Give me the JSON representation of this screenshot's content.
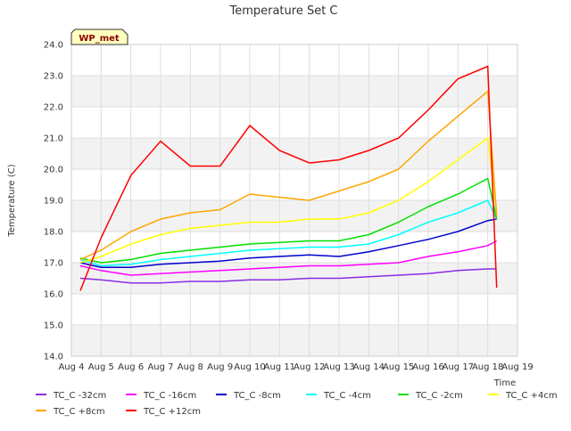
{
  "chart_data": {
    "type": "line",
    "title": "Temperature Set C",
    "xlabel": "Time",
    "ylabel": "Temperature (C)",
    "badge": "WP_met",
    "x_ticks": [
      "Aug 4",
      "Aug 5",
      "Aug 6",
      "Aug 7",
      "Aug 8",
      "Aug 9",
      "Aug 10",
      "Aug 11",
      "Aug 12",
      "Aug 13",
      "Aug 14",
      "Aug 15",
      "Aug 16",
      "Aug 17",
      "Aug 18",
      "Aug 19"
    ],
    "xlim": [
      4,
      19
    ],
    "ylim": [
      14.0,
      24.0
    ],
    "y_ticks": [
      "14.0",
      "15.0",
      "16.0",
      "17.0",
      "18.0",
      "19.0",
      "20.0",
      "21.0",
      "22.0",
      "23.0",
      "24.0"
    ],
    "grid": true,
    "legend_position": "bottom",
    "series": [
      {
        "name": "TC_C -32cm",
        "color": "#8a2be2",
        "x": [
          4.3,
          5.0,
          6.0,
          7.0,
          8.0,
          9.0,
          10.0,
          11.0,
          12.0,
          13.0,
          14.0,
          15.0,
          16.0,
          17.0,
          18.0,
          18.3
        ],
        "y": [
          16.5,
          16.45,
          16.35,
          16.35,
          16.4,
          16.4,
          16.45,
          16.45,
          16.5,
          16.5,
          16.55,
          16.6,
          16.65,
          16.75,
          16.8,
          16.8
        ]
      },
      {
        "name": "TC_C -16cm",
        "color": "#ff00ff",
        "x": [
          4.3,
          5.0,
          6.0,
          7.0,
          8.0,
          9.0,
          10.0,
          11.0,
          12.0,
          13.0,
          14.0,
          15.0,
          16.0,
          17.0,
          18.0,
          18.3
        ],
        "y": [
          16.9,
          16.75,
          16.6,
          16.65,
          16.7,
          16.75,
          16.8,
          16.85,
          16.9,
          16.9,
          16.95,
          17.0,
          17.2,
          17.35,
          17.55,
          17.7
        ]
      },
      {
        "name": "TC_C -8cm",
        "color": "#0000cd",
        "x": [
          4.3,
          5.0,
          6.0,
          7.0,
          8.0,
          9.0,
          10.0,
          11.0,
          12.0,
          13.0,
          14.0,
          15.0,
          16.0,
          17.0,
          18.0,
          18.3
        ],
        "y": [
          17.0,
          16.85,
          16.85,
          16.95,
          17.0,
          17.05,
          17.15,
          17.2,
          17.25,
          17.2,
          17.35,
          17.55,
          17.75,
          18.0,
          18.35,
          18.4
        ]
      },
      {
        "name": "TC_C -4cm",
        "color": "#00ffff",
        "x": [
          4.3,
          5.0,
          6.0,
          7.0,
          8.0,
          9.0,
          10.0,
          11.0,
          12.0,
          13.0,
          14.0,
          15.0,
          16.0,
          17.0,
          18.0,
          18.3
        ],
        "y": [
          17.1,
          16.9,
          16.95,
          17.1,
          17.2,
          17.3,
          17.4,
          17.45,
          17.5,
          17.5,
          17.6,
          17.9,
          18.3,
          18.6,
          19.0,
          18.4
        ]
      },
      {
        "name": "TC_C -2cm",
        "color": "#00e000",
        "x": [
          4.3,
          5.0,
          6.0,
          7.0,
          8.0,
          9.0,
          10.0,
          11.0,
          12.0,
          13.0,
          14.0,
          15.0,
          16.0,
          17.0,
          18.0,
          18.3
        ],
        "y": [
          17.15,
          17.0,
          17.1,
          17.3,
          17.4,
          17.5,
          17.6,
          17.65,
          17.7,
          17.7,
          17.9,
          18.3,
          18.8,
          19.2,
          19.7,
          18.4
        ]
      },
      {
        "name": "TC_C +4cm",
        "color": "#ffff00",
        "x": [
          4.3,
          5.0,
          6.0,
          7.0,
          8.0,
          9.0,
          10.0,
          11.0,
          12.0,
          13.0,
          14.0,
          15.0,
          16.0,
          17.0,
          18.0,
          18.3
        ],
        "y": [
          17.0,
          17.2,
          17.6,
          17.9,
          18.1,
          18.2,
          18.3,
          18.3,
          18.4,
          18.4,
          18.6,
          19.0,
          19.6,
          20.3,
          21.0,
          18.6
        ]
      },
      {
        "name": "TC_C +8cm",
        "color": "#ffa500",
        "x": [
          4.3,
          5.0,
          6.0,
          7.0,
          8.0,
          9.0,
          10.0,
          11.0,
          12.0,
          13.0,
          14.0,
          15.0,
          16.0,
          17.0,
          18.0,
          18.3
        ],
        "y": [
          17.1,
          17.4,
          18.0,
          18.4,
          18.6,
          18.7,
          19.2,
          19.1,
          19.0,
          19.3,
          19.6,
          20.0,
          20.9,
          21.7,
          22.5,
          18.5
        ]
      },
      {
        "name": "TC_C +12cm",
        "color": "#ff0000",
        "x": [
          4.3,
          5.0,
          6.0,
          7.0,
          8.0,
          9.0,
          10.0,
          11.0,
          12.0,
          13.0,
          14.0,
          15.0,
          16.0,
          17.0,
          18.0,
          18.3
        ],
        "y": [
          16.1,
          17.8,
          19.8,
          20.9,
          20.1,
          20.1,
          21.4,
          20.6,
          20.2,
          20.3,
          20.6,
          21.0,
          21.9,
          22.9,
          23.3,
          16.2
        ]
      }
    ]
  }
}
